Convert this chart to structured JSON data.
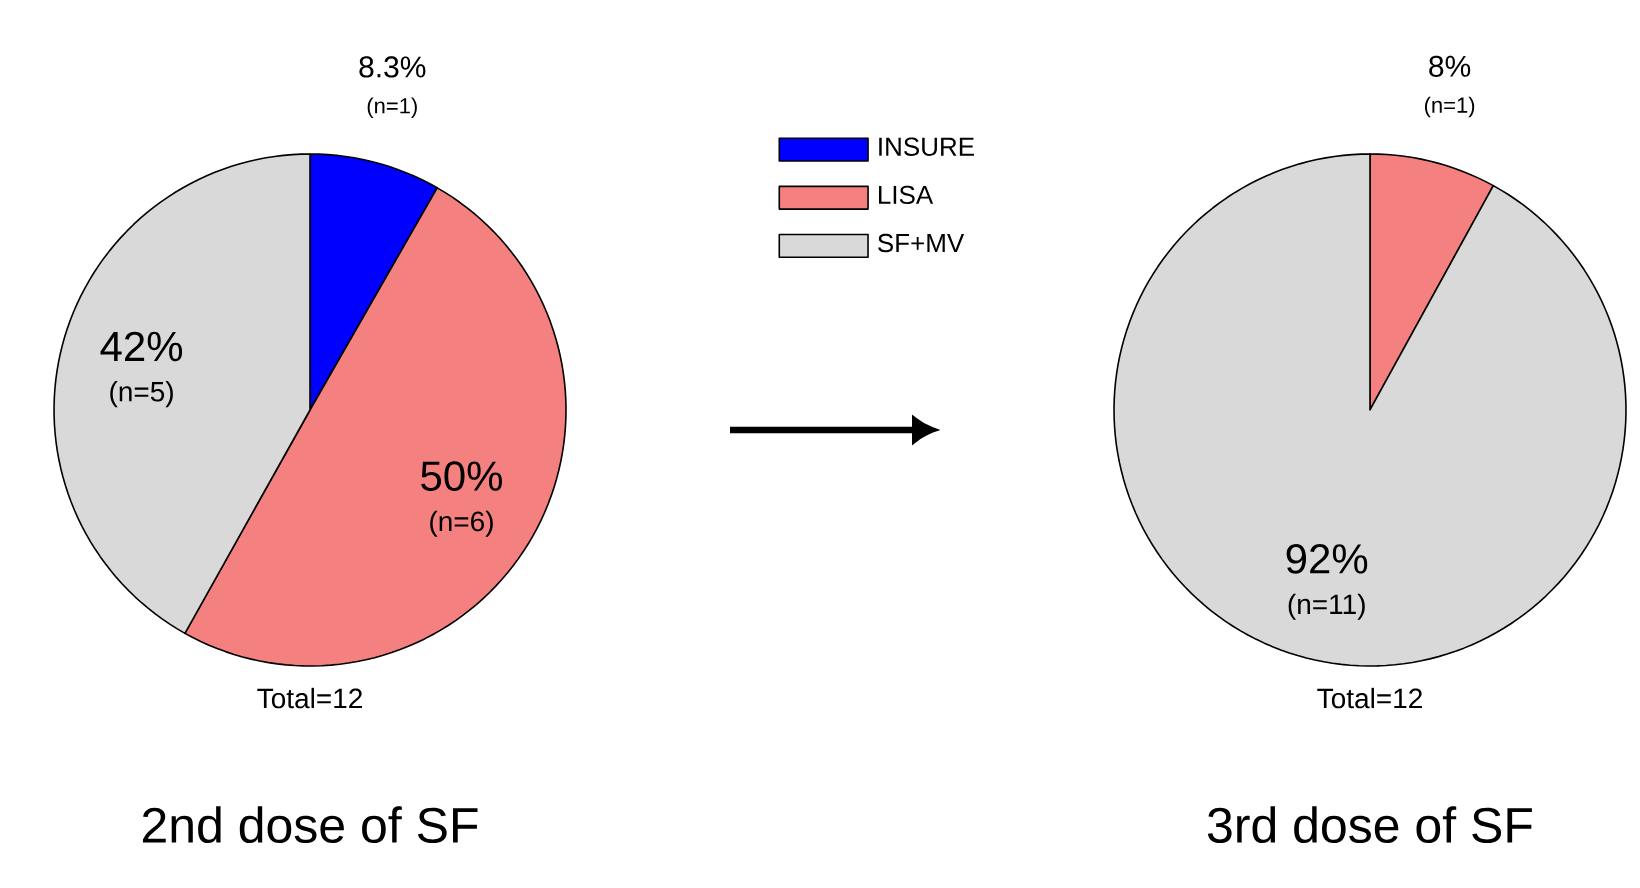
{
  "chart_data": [
    {
      "type": "pie",
      "title": "2nd dose of SF",
      "categories": [
        "INSURE",
        "LISA",
        "SF+MV"
      ],
      "values": [
        8.3,
        50,
        42
      ],
      "colors": [
        "#0000ff",
        "#f4817f",
        "#d9d9d9"
      ],
      "value_labels": [
        "8.3%",
        "50%",
        "42%"
      ],
      "annotations": [
        "(n=1)",
        "(n=6)",
        "(n=5)",
        "Total=12"
      ],
      "legend": "right"
    },
    {
      "type": "pie",
      "title": "3rd dose of SF",
      "categories": [
        null,
        null
      ],
      "values": [
        8,
        92
      ],
      "colors": [
        "#f4817f",
        "#d9d9d9"
      ],
      "value_labels": [
        "8%",
        "92%"
      ],
      "annotations": [
        "(n=1)",
        "(n=11)",
        "Total=12"
      ]
    }
  ]
}
